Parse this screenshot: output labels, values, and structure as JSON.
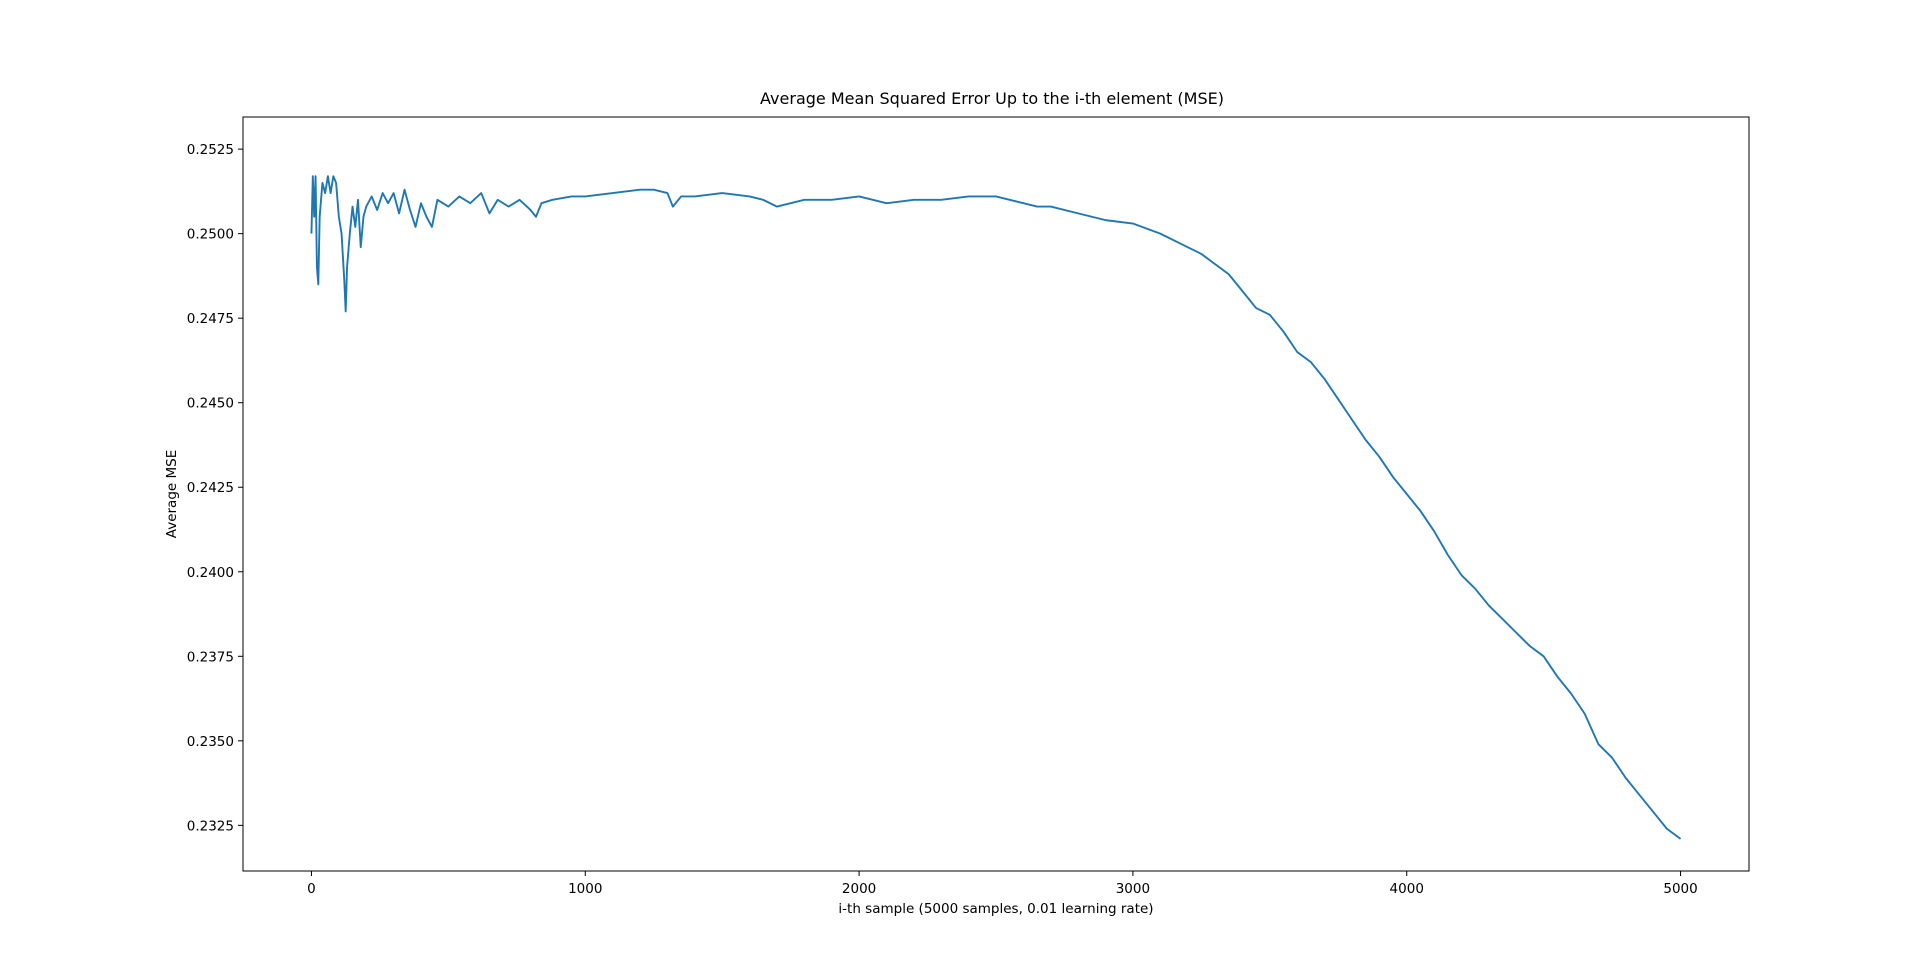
{
  "chart_data": {
    "type": "line",
    "title": "Average Mean Squared Error Up to the i-th element (MSE)",
    "xlabel": "i-th sample (5000 samples, 0.01 learning rate)",
    "ylabel": "Average MSE",
    "xlim": [
      -250,
      5250
    ],
    "ylim": [
      0.23115,
      0.25345
    ],
    "xticks": [
      0,
      1000,
      2000,
      3000,
      4000,
      5000
    ],
    "xtick_labels": [
      "0",
      "1000",
      "2000",
      "3000",
      "4000",
      "5000"
    ],
    "yticks": [
      0.2325,
      0.235,
      0.2375,
      0.24,
      0.2425,
      0.245,
      0.2475,
      0.25,
      0.2525
    ],
    "ytick_labels": [
      "0.2325",
      "0.2350",
      "0.2375",
      "0.2400",
      "0.2425",
      "0.2450",
      "0.2475",
      "0.2500",
      "0.2525"
    ],
    "grid": false,
    "legend": "none",
    "series": [
      {
        "color": "#1f77b4",
        "x": [
          0,
          5,
          10,
          15,
          20,
          25,
          30,
          40,
          50,
          60,
          70,
          80,
          90,
          100,
          110,
          120,
          125,
          130,
          140,
          150,
          160,
          170,
          180,
          190,
          200,
          220,
          240,
          260,
          280,
          300,
          320,
          340,
          360,
          380,
          400,
          420,
          440,
          460,
          500,
          540,
          580,
          620,
          650,
          680,
          720,
          760,
          800,
          820,
          840,
          880,
          950,
          1000,
          1100,
          1200,
          1250,
          1300,
          1320,
          1350,
          1400,
          1500,
          1600,
          1650,
          1700,
          1750,
          1800,
          1900,
          2000,
          2050,
          2100,
          2200,
          2300,
          2400,
          2500,
          2550,
          2600,
          2650,
          2700,
          2800,
          2850,
          2900,
          3000,
          3100,
          3200,
          3250,
          3300,
          3350,
          3400,
          3450,
          3500,
          3550,
          3600,
          3650,
          3700,
          3750,
          3800,
          3850,
          3900,
          3950,
          4000,
          4050,
          4100,
          4150,
          4200,
          4250,
          4300,
          4350,
          4400,
          4450,
          4500,
          4550,
          4600,
          4650,
          4700,
          4750,
          4800,
          4850,
          4900,
          4950,
          5000
        ],
        "y": [
          0.25,
          0.2517,
          0.2505,
          0.2517,
          0.249,
          0.2485,
          0.2505,
          0.2515,
          0.2512,
          0.2517,
          0.2512,
          0.2517,
          0.2515,
          0.2505,
          0.25,
          0.2486,
          0.2477,
          0.249,
          0.25,
          0.2508,
          0.2502,
          0.251,
          0.2496,
          0.2505,
          0.2508,
          0.2511,
          0.2507,
          0.2512,
          0.2509,
          0.2512,
          0.2506,
          0.2513,
          0.2507,
          0.2502,
          0.2509,
          0.2505,
          0.2502,
          0.251,
          0.2508,
          0.2511,
          0.2509,
          0.2512,
          0.2506,
          0.251,
          0.2508,
          0.251,
          0.2507,
          0.2505,
          0.2509,
          0.251,
          0.2511,
          0.2511,
          0.2512,
          0.2513,
          0.2513,
          0.2512,
          0.2508,
          0.2511,
          0.2511,
          0.2512,
          0.2511,
          0.251,
          0.2508,
          0.2509,
          0.251,
          0.251,
          0.2511,
          0.251,
          0.2509,
          0.251,
          0.251,
          0.2511,
          0.2511,
          0.251,
          0.2509,
          0.2508,
          0.2508,
          0.2506,
          0.2505,
          0.2504,
          0.2503,
          0.25,
          0.2496,
          0.2494,
          0.2491,
          0.2488,
          0.2483,
          0.2478,
          0.2476,
          0.2471,
          0.2465,
          0.2462,
          0.2457,
          0.2451,
          0.2445,
          0.2439,
          0.2434,
          0.2428,
          0.2423,
          0.2418,
          0.2412,
          0.2405,
          0.2399,
          0.2395,
          0.239,
          0.2386,
          0.2382,
          0.2378,
          0.2375,
          0.2369,
          0.2364,
          0.2358,
          0.2349,
          0.2345,
          0.2339,
          0.2334,
          0.2329,
          0.2324,
          0.2321
        ]
      }
    ]
  }
}
